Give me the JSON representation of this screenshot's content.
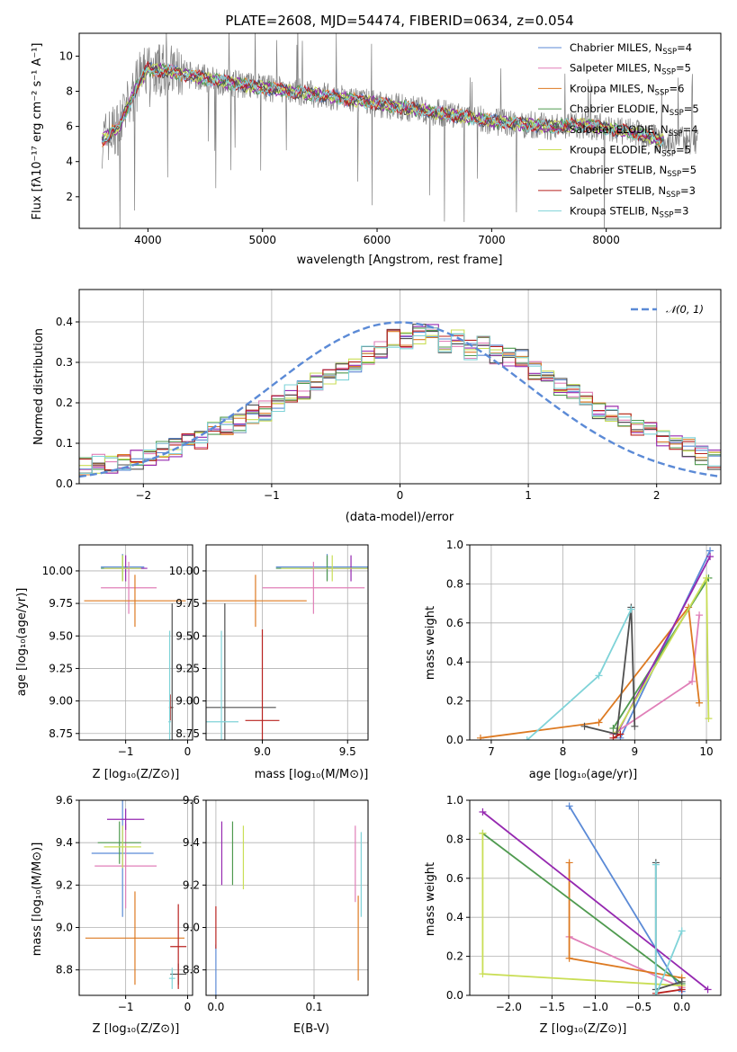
{
  "colors": {
    "blue": "#5b8ad6",
    "pink": "#e07fb8",
    "orange": "#dd7a22",
    "green": "#4f9a4f",
    "purple": "#9528b0",
    "lime": "#c9de55",
    "dark": "#505050",
    "red": "#b8221f",
    "cyan": "#7fd3d8",
    "gray": "#808080",
    "normal": "#5b8ad6"
  },
  "chart_data": [
    {
      "type": "line",
      "title": "PLATE=2608, MJD=54474, FIBERID=0634, z=0.054",
      "xlabel": "wavelength [Angstrom, rest frame]",
      "ylabel": "Flux [fλ10⁻¹⁷ erg cm⁻² s⁻¹ A⁻¹]",
      "xlim": [
        3400,
        9000
      ],
      "ylim": [
        0.2,
        11.3
      ],
      "xticks": [
        "4000",
        "5000",
        "6000",
        "7000",
        "8000"
      ],
      "yticks": [
        "2",
        "4",
        "6",
        "8",
        "10"
      ],
      "legend_position": "upper right",
      "legend": [
        "Chabrier MILES, N_SSP=4",
        "Salpeter MILES, N_SSP=5",
        "Kroupa MILES, N_SSP=6",
        "Chabrier ELODIE, N_SSP=5",
        "Salpeter ELODIE, N_SSP=4",
        "Kroupa ELODIE, N_SSP=5",
        "Chabrier STELIB, N_SSP=5",
        "Salpeter STELIB, N_SSP=3",
        "Kroupa STELIB, N_SSP=3"
      ],
      "spectrum_trend": {
        "x": [
          3600,
          3750,
          3900,
          4000,
          4300,
          4600,
          5000,
          5500,
          6000,
          6500,
          7000,
          7500,
          7800,
          8200,
          8500
        ],
        "y": [
          5.2,
          6.0,
          8.2,
          9.3,
          9.0,
          8.6,
          8.2,
          7.8,
          7.3,
          6.8,
          6.3,
          6.0,
          6.1,
          5.7,
          5.2
        ]
      }
    },
    {
      "type": "bar",
      "xlabel": "(data-model)/error",
      "ylabel": "Normed distribution",
      "xlim": [
        -2.5,
        2.5
      ],
      "ylim": [
        0,
        0.48
      ],
      "xticks": [
        "−2",
        "−1",
        "0",
        "1",
        "2"
      ],
      "yticks": [
        "0.0",
        "0.1",
        "0.2",
        "0.3",
        "0.4"
      ],
      "legend": [
        "𝒩(0, 1)"
      ],
      "bin_edges_start": -2.5,
      "bin_width": 0.1,
      "typical_histogram": [
        0.04,
        0.05,
        0.05,
        0.05,
        0.06,
        0.06,
        0.08,
        0.09,
        0.1,
        0.11,
        0.13,
        0.14,
        0.15,
        0.17,
        0.18,
        0.2,
        0.22,
        0.23,
        0.25,
        0.27,
        0.28,
        0.3,
        0.32,
        0.33,
        0.36,
        0.35,
        0.37,
        0.38,
        0.34,
        0.36,
        0.33,
        0.34,
        0.32,
        0.31,
        0.31,
        0.28,
        0.27,
        0.24,
        0.23,
        0.21,
        0.18,
        0.17,
        0.15,
        0.14,
        0.13,
        0.11,
        0.1,
        0.09,
        0.07,
        0.06
      ]
    },
    {
      "type": "scatter",
      "xlabel": "Z [log₁₀(Z/Z⊙)]",
      "ylabel": "age  [log₁₀(age/yr)]",
      "xlim": [
        -1.75,
        0.08
      ],
      "ylim": [
        8.7,
        10.2
      ],
      "xticks": [
        "−1",
        "0"
      ],
      "yticks": [
        "8.75",
        "9.00",
        "9.25",
        "9.50",
        "9.75",
        "10.00"
      ],
      "points": [
        {
          "color": "blue",
          "x": -1.05,
          "y": 10.03,
          "xerr": 0.35,
          "yerr": 0.1
        },
        {
          "color": "pink",
          "x": -0.95,
          "y": 9.87,
          "xerr": 0.45,
          "yerr": 0.2
        },
        {
          "color": "orange",
          "x": -0.85,
          "y": 9.77,
          "xerr": 0.82,
          "yerr": 0.2
        },
        {
          "color": "green",
          "x": -1.05,
          "y": 10.02,
          "xerr": 0.35,
          "yerr": 0.1
        },
        {
          "color": "purple",
          "x": -1.0,
          "y": 10.02,
          "xerr": 0.35,
          "yerr": 0.1
        },
        {
          "color": "lime",
          "x": -1.05,
          "y": 10.02,
          "xerr": 0.3,
          "yerr": 0.1
        },
        {
          "color": "dark",
          "x": -0.25,
          "y": 8.95,
          "xerr": 0.02,
          "yerr": 0.8
        },
        {
          "color": "red",
          "x": -0.28,
          "y": 8.95,
          "xerr": 0.02,
          "yerr": 0.1
        },
        {
          "color": "cyan",
          "x": -0.29,
          "y": 8.84,
          "xerr": 0.02,
          "yerr": 0.7
        }
      ]
    },
    {
      "type": "scatter",
      "xlabel": "mass [log₁₀(M/M⊙)]",
      "ylabel": "",
      "xlim": [
        8.67,
        9.62
      ],
      "ylim": [
        8.7,
        10.2
      ],
      "xticks": [
        "9.0",
        "9.5"
      ],
      "yticks": [
        "8.75",
        "9.00",
        "9.25",
        "9.50",
        "9.75",
        "10.00"
      ],
      "points": [
        {
          "color": "blue",
          "x": 9.38,
          "y": 10.03,
          "xerr": 0.3,
          "yerr": 0.1
        },
        {
          "color": "pink",
          "x": 9.3,
          "y": 9.87,
          "xerr": 0.3,
          "yerr": 0.2
        },
        {
          "color": "orange",
          "x": 8.96,
          "y": 9.77,
          "xerr": 0.3,
          "yerr": 0.2
        },
        {
          "color": "green",
          "x": 9.38,
          "y": 10.02,
          "xerr": 0.3,
          "yerr": 0.1
        },
        {
          "color": "purple",
          "x": 9.52,
          "y": 10.02,
          "xerr": 0.3,
          "yerr": 0.1
        },
        {
          "color": "lime",
          "x": 9.41,
          "y": 10.02,
          "xerr": 0.3,
          "yerr": 0.1
        },
        {
          "color": "dark",
          "x": 8.78,
          "y": 8.95,
          "xerr": 0.3,
          "yerr": 0.8
        },
        {
          "color": "red",
          "x": 9.0,
          "y": 8.85,
          "xerr": 0.1,
          "yerr": 0.7
        },
        {
          "color": "cyan",
          "x": 8.76,
          "y": 8.84,
          "xerr": 0.1,
          "yerr": 0.7
        }
      ]
    },
    {
      "type": "line",
      "xlabel": "age  [log₁₀(age/yr)]",
      "ylabel": "mass weight",
      "xlim": [
        6.7,
        10.2
      ],
      "ylim": [
        0,
        1
      ],
      "xticks": [
        "7",
        "8",
        "9",
        "10"
      ],
      "yticks": [
        "0.0",
        "0.2",
        "0.4",
        "0.6",
        "0.8",
        "1.0"
      ],
      "series": [
        {
          "color": "blue",
          "x": [
            8.8,
            10.05
          ],
          "y": [
            0.01,
            0.97
          ]
        },
        {
          "color": "pink",
          "x": [
            8.7,
            9.8,
            9.9
          ],
          "y": [
            0.03,
            0.3,
            0.64
          ]
        },
        {
          "color": "orange",
          "x": [
            6.85,
            8.5,
            9.75,
            9.9
          ],
          "y": [
            0.01,
            0.09,
            0.68,
            0.19
          ]
        },
        {
          "color": "green",
          "x": [
            8.7,
            10.03
          ],
          "y": [
            0.06,
            0.83
          ]
        },
        {
          "color": "purple",
          "x": [
            8.75,
            10.05
          ],
          "y": [
            0.03,
            0.94
          ]
        },
        {
          "color": "lime",
          "x": [
            8.75,
            10.0,
            10.03
          ],
          "y": [
            0.04,
            0.83,
            0.11
          ]
        },
        {
          "color": "dark",
          "x": [
            8.3,
            8.75,
            8.95,
            9.0
          ],
          "y": [
            0.07,
            0.03,
            0.68,
            0.07
          ]
        },
        {
          "color": "red",
          "x": [
            8.7,
            8.8
          ],
          "y": [
            0.01,
            0.03
          ]
        },
        {
          "color": "cyan",
          "x": [
            7.5,
            8.5,
            8.95
          ],
          "y": [
            0.0,
            0.33,
            0.67
          ]
        }
      ]
    },
    {
      "type": "scatter",
      "xlabel": "Z [log₁₀(Z/Z⊙)]",
      "ylabel": "mass [log₁₀(M/M⊙)]",
      "xlim": [
        -1.75,
        0.08
      ],
      "ylim": [
        8.68,
        9.6
      ],
      "xticks": [
        "−1",
        "0"
      ],
      "yticks": [
        "8.8",
        "9.0",
        "9.2",
        "9.4",
        "9.6"
      ],
      "points": [
        {
          "color": "blue",
          "x": -1.05,
          "y": 9.35,
          "xerr": 0.5,
          "yerr": 0.3
        },
        {
          "color": "pink",
          "x": -1.0,
          "y": 9.29,
          "xerr": 0.5,
          "yerr": 0.2
        },
        {
          "color": "orange",
          "x": -0.85,
          "y": 8.95,
          "xerr": 0.8,
          "yerr": 0.22
        },
        {
          "color": "green",
          "x": -1.1,
          "y": 9.4,
          "xerr": 0.35,
          "yerr": 0.1
        },
        {
          "color": "purple",
          "x": -1.0,
          "y": 9.51,
          "xerr": 0.3,
          "yerr": 0.05
        },
        {
          "color": "lime",
          "x": -1.05,
          "y": 9.38,
          "xerr": 0.3,
          "yerr": 0.1
        },
        {
          "color": "dark",
          "x": -0.15,
          "y": 8.78,
          "xerr": 0.13,
          "yerr": 0.05
        },
        {
          "color": "red",
          "x": -0.15,
          "y": 8.91,
          "xerr": 0.13,
          "yerr": 0.2
        },
        {
          "color": "cyan",
          "x": -0.25,
          "y": 8.76,
          "xerr": 0.05,
          "yerr": 0.05
        }
      ]
    },
    {
      "type": "scatter",
      "xlabel": "E(B-V)",
      "ylabel": "",
      "xlim": [
        -0.01,
        0.155
      ],
      "ylim": [
        8.68,
        9.6
      ],
      "xticks": [
        "0.0",
        "0.1"
      ],
      "yticks": [
        "8.8",
        "9.0",
        "9.2",
        "9.4",
        "9.6"
      ],
      "points": [
        {
          "color": "blue",
          "x": 0.0,
          "y": 8.8,
          "yerr": 0.12
        },
        {
          "color": "purple",
          "x": 0.006,
          "y": 9.35,
          "yerr": 0.15
        },
        {
          "color": "green",
          "x": 0.017,
          "y": 9.35,
          "yerr": 0.15
        },
        {
          "color": "lime",
          "x": 0.028,
          "y": 9.33,
          "yerr": 0.15
        },
        {
          "color": "pink",
          "x": 0.142,
          "y": 9.3,
          "yerr": 0.18
        },
        {
          "color": "orange",
          "x": 0.145,
          "y": 8.95,
          "yerr": 0.2
        },
        {
          "color": "cyan",
          "x": 0.148,
          "y": 9.25,
          "yerr": 0.2
        },
        {
          "color": "red",
          "x": 0.0,
          "y": 9.0,
          "yerr": 0.1
        }
      ]
    },
    {
      "type": "line",
      "xlabel": "Z [log₁₀(Z/Z⊙)]",
      "ylabel": "mass weight",
      "xlim": [
        -2.45,
        0.45
      ],
      "ylim": [
        0,
        1
      ],
      "xticks": [
        "−2.0",
        "−1.5",
        "−1.0",
        "−0.5",
        "0.0"
      ],
      "yticks": [
        "0.0",
        "0.2",
        "0.4",
        "0.6",
        "0.8",
        "1.0"
      ],
      "series": [
        {
          "color": "blue",
          "x": [
            -1.3,
            0.0
          ],
          "y": [
            0.97,
            0.02
          ]
        },
        {
          "color": "pink",
          "x": [
            -1.3,
            0.0
          ],
          "y": [
            0.3,
            0.04
          ]
        },
        {
          "color": "orange",
          "x": [
            -1.3,
            -1.3,
            0.0
          ],
          "y": [
            0.68,
            0.19,
            0.09
          ]
        },
        {
          "color": "green",
          "x": [
            -2.3,
            0.0
          ],
          "y": [
            0.83,
            0.06
          ]
        },
        {
          "color": "purple",
          "x": [
            -2.3,
            0.3
          ],
          "y": [
            0.94,
            0.03
          ]
        },
        {
          "color": "lime",
          "x": [
            -2.3,
            -2.3,
            0.0
          ],
          "y": [
            0.83,
            0.11,
            0.05
          ]
        },
        {
          "color": "dark",
          "x": [
            -0.3,
            -0.3,
            0.0
          ],
          "y": [
            0.68,
            0.03,
            0.07
          ]
        },
        {
          "color": "red",
          "x": [
            -0.3,
            0.0
          ],
          "y": [
            0.01,
            0.03
          ]
        },
        {
          "color": "cyan",
          "x": [
            -0.3,
            -0.3,
            0.0
          ],
          "y": [
            0.67,
            0.0,
            0.33
          ]
        }
      ]
    }
  ]
}
